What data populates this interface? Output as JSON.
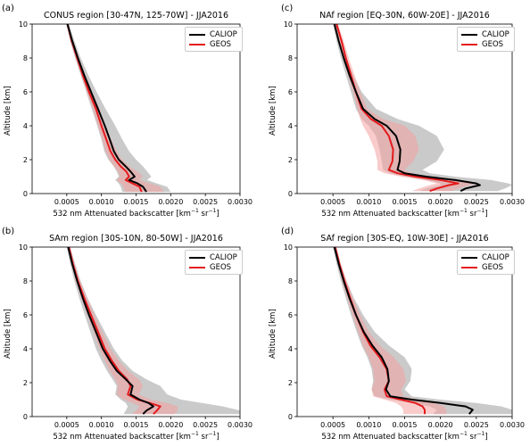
{
  "figure": {
    "ylabel": "Altitude [km]",
    "xlabel_main": "532 nm Attenuated backscatter [km",
    "xlabel_sup1": "−1",
    "xlabel_mid": " sr",
    "xlabel_sup2": "−1",
    "xlabel_end": "]"
  },
  "colors": {
    "caliop": "#000000",
    "geos": "#e41a1c",
    "caliop_band": "#9e9e9e",
    "geos_band": "#f4a0a0"
  },
  "chart_data": [
    {
      "type": "line",
      "panel_label": "(a)",
      "title": "CONUS region [30-47N, 125-70W] - JJA2016",
      "xlim": [
        0,
        0.003
      ],
      "ylim": [
        0,
        10
      ],
      "xticks": [
        "0.0005",
        "0.0010",
        "0.0015",
        "0.0020",
        "0.0025",
        "0.0030"
      ],
      "yticks": [
        "0",
        "2",
        "4",
        "6",
        "8",
        "10"
      ],
      "legend": [
        "CALIOP",
        "GEOS"
      ],
      "series": [
        {
          "name": "CALIOP",
          "x": [
            0.00051,
            0.00058,
            0.00066,
            0.00075,
            0.00085,
            0.00095,
            0.00105,
            0.00112,
            0.00118,
            0.00125,
            0.00135,
            0.00142,
            0.00148,
            0.0014,
            0.00152,
            0.0016,
            0.00165
          ],
          "y": [
            10,
            9,
            8,
            7,
            6,
            5,
            4,
            3.2,
            2.5,
            2.0,
            1.6,
            1.3,
            1.0,
            0.8,
            0.6,
            0.4,
            0.1
          ]
        },
        {
          "name": "GEOS",
          "x": [
            0.00051,
            0.00057,
            0.00065,
            0.00073,
            0.00082,
            0.00092,
            0.001,
            0.00107,
            0.00113,
            0.0012,
            0.00128,
            0.00136,
            0.0014,
            0.00135,
            0.00145,
            0.00155,
            0.00158
          ],
          "y": [
            10,
            9,
            8,
            7,
            6,
            5,
            4,
            3.2,
            2.5,
            2.0,
            1.6,
            1.3,
            1.0,
            0.8,
            0.6,
            0.4,
            0.1
          ]
        }
      ],
      "bands": [
        {
          "of": "CALIOP",
          "low": [
            0.00049,
            0.00055,
            0.00062,
            0.0007,
            0.00078,
            0.00086,
            0.00094,
            0.001,
            0.00104,
            0.0011,
            0.00118,
            0.00122,
            0.00125,
            0.0012,
            0.00125,
            0.00128,
            0.0013
          ],
          "high": [
            0.00053,
            0.00061,
            0.0007,
            0.00081,
            0.00093,
            0.00106,
            0.0012,
            0.0013,
            0.0014,
            0.0015,
            0.0016,
            0.00166,
            0.00172,
            0.00166,
            0.0018,
            0.00195,
            0.002
          ]
        },
        {
          "of": "GEOS",
          "low": [
            0.0005,
            0.00056,
            0.00063,
            0.00071,
            0.00079,
            0.00088,
            0.00095,
            0.00101,
            0.00106,
            0.00112,
            0.00118,
            0.00124,
            0.00127,
            0.00122,
            0.00128,
            0.00132,
            0.00134
          ],
          "high": [
            0.00052,
            0.00059,
            0.00068,
            0.00076,
            0.00086,
            0.00097,
            0.00106,
            0.00114,
            0.00122,
            0.0013,
            0.0014,
            0.00152,
            0.0016,
            0.00155,
            0.0017,
            0.00185,
            0.0019
          ]
        }
      ]
    },
    {
      "type": "line",
      "panel_label": "(c)",
      "title": "NAf region [EQ-30N, 60W-20E] - JJA2016",
      "xlim": [
        0,
        0.003
      ],
      "ylim": [
        0,
        10
      ],
      "xticks": [
        "0.0005",
        "0.0010",
        "0.0015",
        "0.0020",
        "0.0025",
        "0.0030"
      ],
      "yticks": [
        "0",
        "2",
        "4",
        "6",
        "8",
        "10"
      ],
      "legend": [
        "CALIOP",
        "GEOS"
      ],
      "series": [
        {
          "name": "CALIOP",
          "x": [
            0.00052,
            0.00058,
            0.00065,
            0.00073,
            0.00082,
            0.00092,
            0.00108,
            0.00125,
            0.00138,
            0.00144,
            0.00143,
            0.0014,
            0.0015,
            0.0018,
            0.0022,
            0.0025,
            0.00255,
            0.00235,
            0.00228
          ],
          "y": [
            10,
            9,
            8,
            7,
            6,
            5,
            4.4,
            4.0,
            3.4,
            2.6,
            1.9,
            1.4,
            1.2,
            1.0,
            0.8,
            0.6,
            0.5,
            0.3,
            0.15
          ]
        },
        {
          "name": "GEOS",
          "x": [
            0.00055,
            0.00062,
            0.00068,
            0.00075,
            0.00082,
            0.0009,
            0.00103,
            0.00118,
            0.00128,
            0.00134,
            0.00133,
            0.00128,
            0.0014,
            0.00165,
            0.002,
            0.00225,
            0.00212,
            0.00195,
            0.00185
          ],
          "y": [
            10,
            9,
            8,
            7,
            6,
            5,
            4.4,
            4.0,
            3.4,
            2.6,
            1.9,
            1.4,
            1.2,
            1.0,
            0.8,
            0.6,
            0.5,
            0.3,
            0.15
          ]
        }
      ],
      "bands": [
        {
          "of": "CALIOP",
          "low": [
            0.0005,
            0.00055,
            0.00061,
            0.00068,
            0.00075,
            0.00082,
            0.0009,
            0.001,
            0.0011,
            0.00115,
            0.00118,
            0.0012,
            0.0013,
            0.0015,
            0.0018,
            0.002,
            0.002,
            0.0018,
            0.0017
          ],
          "high": [
            0.00054,
            0.00061,
            0.00069,
            0.00078,
            0.0009,
            0.0011,
            0.0014,
            0.0017,
            0.00195,
            0.00205,
            0.00195,
            0.00175,
            0.00185,
            0.0022,
            0.0027,
            0.00295,
            0.003,
            0.0029,
            0.0028
          ]
        },
        {
          "of": "GEOS",
          "low": [
            0.00053,
            0.00059,
            0.00065,
            0.00071,
            0.00078,
            0.00084,
            0.00088,
            0.00092,
            0.001,
            0.00108,
            0.00112,
            0.00112,
            0.00122,
            0.00145,
            0.00175,
            0.00195,
            0.00185,
            0.0017,
            0.0016
          ],
          "high": [
            0.00057,
            0.00065,
            0.00072,
            0.0008,
            0.00088,
            0.00098,
            0.0012,
            0.0015,
            0.00165,
            0.0017,
            0.00162,
            0.0015,
            0.0016,
            0.00185,
            0.00225,
            0.00255,
            0.0024,
            0.00225,
            0.00215
          ]
        }
      ]
    },
    {
      "type": "line",
      "panel_label": "(b)",
      "title": "SAm region [30S-10N, 80-50W] - JJA2016",
      "xlim": [
        0,
        0.003
      ],
      "ylim": [
        0,
        10
      ],
      "xticks": [
        "0.0005",
        "0.0010",
        "0.0015",
        "0.0020",
        "0.0025",
        "0.0030"
      ],
      "yticks": [
        "0",
        "2",
        "4",
        "6",
        "8",
        "10"
      ],
      "legend": [
        "CALIOP",
        "GEOS"
      ],
      "series": [
        {
          "name": "CALIOP",
          "x": [
            0.00052,
            0.00058,
            0.00065,
            0.00073,
            0.00082,
            0.00092,
            0.00102,
            0.00112,
            0.00122,
            0.00135,
            0.00145,
            0.00142,
            0.00155,
            0.00168,
            0.00175,
            0.00165,
            0.0016
          ],
          "y": [
            10,
            9,
            8,
            7,
            6,
            5,
            4,
            3.3,
            2.7,
            2.2,
            1.8,
            1.3,
            1.0,
            0.8,
            0.6,
            0.35,
            0.15
          ]
        },
        {
          "name": "GEOS",
          "x": [
            0.00053,
            0.00059,
            0.00066,
            0.00075,
            0.00085,
            0.00095,
            0.00105,
            0.00115,
            0.00125,
            0.00137,
            0.00142,
            0.00138,
            0.00152,
            0.0017,
            0.00185,
            0.0018,
            0.00175
          ],
          "y": [
            10,
            9,
            8,
            7,
            6,
            5,
            4,
            3.3,
            2.7,
            2.2,
            1.8,
            1.3,
            1.0,
            0.8,
            0.6,
            0.35,
            0.15
          ]
        }
      ],
      "bands": [
        {
          "of": "CALIOP",
          "low": [
            0.0005,
            0.00055,
            0.00061,
            0.00068,
            0.00076,
            0.00084,
            0.00092,
            0.001,
            0.00108,
            0.00116,
            0.00122,
            0.0012,
            0.00128,
            0.00135,
            0.00138,
            0.00135,
            0.00132
          ],
          "high": [
            0.00055,
            0.00062,
            0.0007,
            0.0008,
            0.00092,
            0.00105,
            0.00118,
            0.0013,
            0.00145,
            0.00165,
            0.00185,
            0.00195,
            0.00215,
            0.00245,
            0.00275,
            0.003,
            0.003
          ]
        },
        {
          "of": "GEOS",
          "low": [
            0.00051,
            0.00057,
            0.00063,
            0.00071,
            0.0008,
            0.00089,
            0.00097,
            0.00105,
            0.00112,
            0.0012,
            0.00124,
            0.00122,
            0.00132,
            0.00145,
            0.00155,
            0.0015,
            0.00145
          ],
          "high": [
            0.00055,
            0.00061,
            0.00069,
            0.00079,
            0.0009,
            0.00101,
            0.00113,
            0.00125,
            0.00138,
            0.00154,
            0.0016,
            0.00154,
            0.00172,
            0.00195,
            0.0021,
            0.0021,
            0.00205
          ]
        }
      ]
    },
    {
      "type": "line",
      "panel_label": "(d)",
      "title": "SAf region [30S-EQ, 10W-30E] - JJA2016",
      "xlim": [
        0,
        0.003
      ],
      "ylim": [
        0,
        10
      ],
      "xticks": [
        "0.0005",
        "0.0010",
        "0.0015",
        "0.0020",
        "0.0025",
        "0.0030"
      ],
      "yticks": [
        "0",
        "2",
        "4",
        "6",
        "8",
        "10"
      ],
      "legend": [
        "CALIOP",
        "GEOS"
      ],
      "series": [
        {
          "name": "CALIOP",
          "x": [
            0.00052,
            0.00058,
            0.00065,
            0.00073,
            0.00082,
            0.00093,
            0.00105,
            0.00118,
            0.00126,
            0.00128,
            0.00124,
            0.0013,
            0.0016,
            0.002,
            0.00235,
            0.00245,
            0.0024
          ],
          "y": [
            10,
            9,
            8,
            7,
            6,
            5,
            4.2,
            3.5,
            2.8,
            2.1,
            1.6,
            1.2,
            1.0,
            0.8,
            0.6,
            0.4,
            0.15
          ]
        },
        {
          "name": "GEOS",
          "x": [
            0.00053,
            0.00059,
            0.00066,
            0.00074,
            0.00082,
            0.00092,
            0.00102,
            0.00115,
            0.00125,
            0.00128,
            0.00122,
            0.00125,
            0.00145,
            0.00165,
            0.00175,
            0.00178,
            0.00178
          ],
          "y": [
            10,
            9,
            8,
            7,
            6,
            5,
            4.2,
            3.5,
            2.8,
            2.1,
            1.6,
            1.2,
            1.0,
            0.8,
            0.6,
            0.4,
            0.15
          ]
        }
      ],
      "bands": [
        {
          "of": "CALIOP",
          "low": [
            0.0005,
            0.00055,
            0.00061,
            0.00068,
            0.00075,
            0.00083,
            0.0009,
            0.00098,
            0.00104,
            0.00106,
            0.00104,
            0.00108,
            0.0013,
            0.0016,
            0.00185,
            0.00195,
            0.0019
          ],
          "high": [
            0.00054,
            0.00061,
            0.00069,
            0.00079,
            0.00092,
            0.00108,
            0.00128,
            0.0015,
            0.0016,
            0.00158,
            0.0015,
            0.0016,
            0.002,
            0.0025,
            0.00285,
            0.003,
            0.003
          ]
        },
        {
          "of": "GEOS",
          "low": [
            0.00051,
            0.00057,
            0.00063,
            0.0007,
            0.00077,
            0.00085,
            0.00092,
            0.001,
            0.00106,
            0.00108,
            0.00104,
            0.00106,
            0.00122,
            0.00138,
            0.00145,
            0.00148,
            0.00148
          ],
          "high": [
            0.00055,
            0.00061,
            0.00069,
            0.00078,
            0.00088,
            0.001,
            0.00115,
            0.00135,
            0.00148,
            0.00152,
            0.00145,
            0.00148,
            0.0017,
            0.00192,
            0.00205,
            0.00208,
            0.00208
          ]
        }
      ]
    }
  ]
}
